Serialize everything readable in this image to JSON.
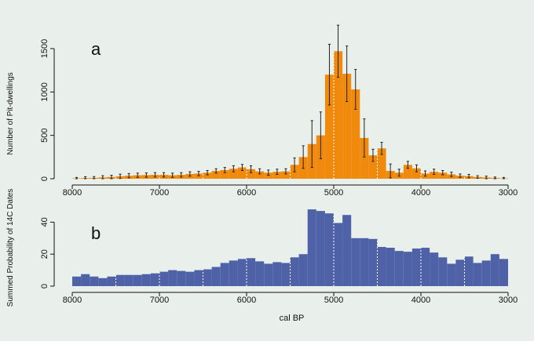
{
  "colors": {
    "background": "#e9f0ec",
    "panel_a_bars": "#f08a0c",
    "panel_b_bars": "#4f62a8",
    "error_bars": "#222222",
    "axis": "#111111",
    "bin_lines": "#ffffff"
  },
  "chart_data": [
    {
      "type": "bar",
      "panel_label": "a",
      "ylabel": "Number of Pit-dwellings",
      "xlabel": "",
      "xlim": [
        8000,
        3000
      ],
      "ylim": [
        0,
        1500
      ],
      "x_ticks": [
        "8000",
        "7000",
        "6000",
        "5000",
        "4000",
        "3000"
      ],
      "y_ticks": [
        "0",
        "500",
        "1000",
        "1500"
      ],
      "grid": false,
      "bin_width": 100,
      "bin_starts": [
        8000,
        7900,
        7800,
        7700,
        7600,
        7500,
        7400,
        7300,
        7200,
        7100,
        7000,
        6900,
        6800,
        6700,
        6600,
        6500,
        6400,
        6300,
        6200,
        6100,
        6000,
        5900,
        5800,
        5700,
        5600,
        5500,
        5400,
        5300,
        5200,
        5100,
        5000,
        4900,
        4800,
        4700,
        4600,
        4500,
        4400,
        4300,
        4200,
        4100,
        4000,
        3900,
        3800,
        3700,
        3600,
        3500,
        3400,
        3300,
        3200,
        3100
      ],
      "values": [
        5,
        8,
        10,
        15,
        20,
        28,
        35,
        40,
        42,
        45,
        45,
        40,
        45,
        55,
        60,
        70,
        90,
        100,
        115,
        130,
        110,
        85,
        70,
        80,
        85,
        160,
        250,
        400,
        500,
        1200,
        1470,
        1210,
        1030,
        470,
        270,
        350,
        90,
        70,
        160,
        120,
        60,
        80,
        70,
        50,
        35,
        30,
        20,
        15,
        10,
        5
      ],
      "errors": [
        10,
        15,
        15,
        20,
        20,
        25,
        25,
        25,
        25,
        25,
        25,
        25,
        25,
        25,
        25,
        25,
        25,
        30,
        35,
        35,
        40,
        30,
        30,
        30,
        30,
        80,
        130,
        270,
        270,
        350,
        300,
        320,
        230,
        220,
        70,
        70,
        80,
        40,
        40,
        40,
        30,
        30,
        25,
        25,
        20,
        20,
        15,
        15,
        10,
        10
      ]
    },
    {
      "type": "bar",
      "panel_label": "b",
      "ylabel": "Summed Probability of 14C Dates",
      "xlabel": "cal BP",
      "xlim": [
        8000,
        3000
      ],
      "ylim": [
        0,
        50
      ],
      "x_ticks": [
        "8000",
        "7000",
        "6000",
        "5000",
        "4000",
        "3000"
      ],
      "y_ticks": [
        "0",
        "20",
        "40"
      ],
      "grid": false,
      "bin_width": 100,
      "bin_starts": [
        8000,
        7900,
        7800,
        7700,
        7600,
        7500,
        7400,
        7300,
        7200,
        7100,
        7000,
        6900,
        6800,
        6700,
        6600,
        6500,
        6400,
        6300,
        6200,
        6100,
        6000,
        5900,
        5800,
        5700,
        5600,
        5500,
        5400,
        5300,
        5200,
        5100,
        5000,
        4900,
        4800,
        4700,
        4600,
        4500,
        4400,
        4300,
        4200,
        4100,
        4000,
        3900,
        3800,
        3700,
        3600,
        3500,
        3400,
        3300,
        3200,
        3100
      ],
      "values": [
        6,
        7.5,
        6,
        5,
        6,
        7,
        7,
        7,
        7.5,
        8,
        9,
        10,
        9.5,
        9,
        10,
        10.5,
        12,
        14.5,
        16,
        17,
        17.5,
        15.5,
        14,
        15,
        14.5,
        18,
        20,
        48,
        47,
        45.5,
        39.5,
        44.5,
        30,
        30,
        29.5,
        24.5,
        24,
        22,
        21.5,
        23.5,
        24,
        21,
        18,
        14,
        16.5,
        18.5,
        14.5,
        16,
        20,
        17
      ]
    }
  ]
}
